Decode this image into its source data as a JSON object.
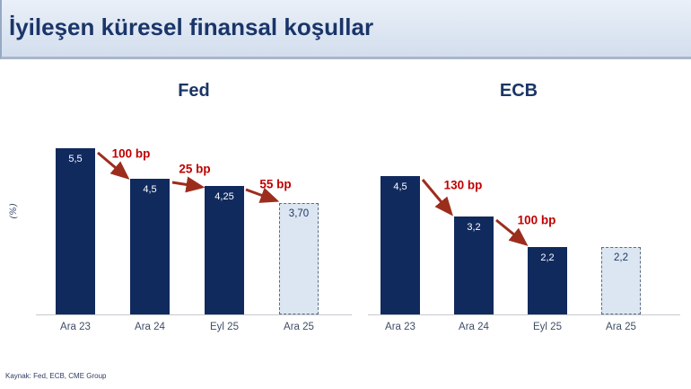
{
  "header": {
    "title": "İyileşen küresel finansal koşullar"
  },
  "source": {
    "label": "Kaynak: Fed, ECB, CME Group"
  },
  "colors": {
    "title_navy": "#1a3569",
    "bar_navy": "#112a5e",
    "forecast_fill": "#dce6f2",
    "forecast_border": "#5b6b84",
    "arrow_red": "#9c2d1d",
    "delta_text_red": "#c00000",
    "header_bg": "#dde6f2"
  },
  "chart_data": [
    {
      "type": "bar",
      "title": "Fed",
      "ylabel": "(%)",
      "categories": [
        "Ara 23",
        "Ara 24",
        "Eyl 25",
        "Ara 25"
      ],
      "values": [
        5.5,
        4.5,
        4.25,
        3.7
      ],
      "value_labels": [
        "5,5",
        "4,5",
        "4,25",
        "3,70"
      ],
      "bar_styles": [
        "solid",
        "solid",
        "solid",
        "forecast"
      ],
      "deltas": [
        "100 bp",
        "25 bp",
        "55 bp"
      ],
      "ylim": [
        0,
        6
      ],
      "grid": false,
      "legend": "none"
    },
    {
      "type": "bar",
      "title": "ECB",
      "ylabel": "",
      "categories": [
        "Ara 23",
        "Ara 24",
        "Eyl 25",
        "Ara 25"
      ],
      "values": [
        4.5,
        3.2,
        2.2,
        2.2
      ],
      "value_labels": [
        "4,5",
        "3,2",
        "2,2",
        "2,2"
      ],
      "bar_styles": [
        "solid",
        "solid",
        "solid",
        "forecast"
      ],
      "deltas": [
        "130 bp",
        "100 bp"
      ],
      "ylim": [
        0,
        6
      ],
      "grid": false,
      "legend": "none"
    }
  ]
}
